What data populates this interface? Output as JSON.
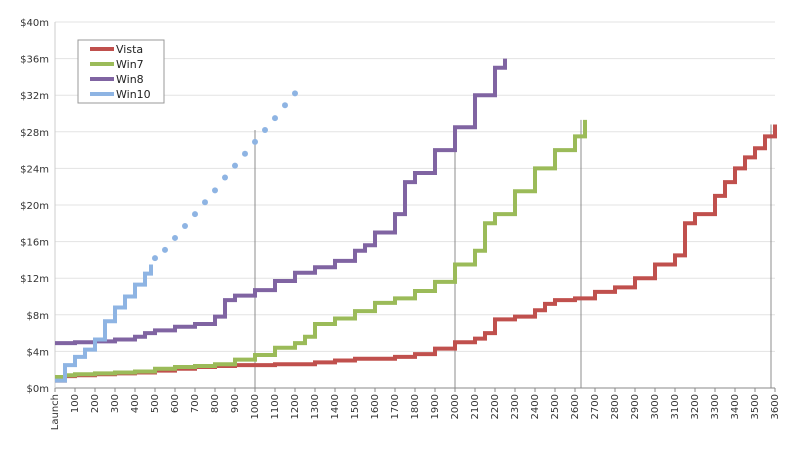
{
  "chart_data": {
    "type": "line",
    "title": "",
    "xlabel": "",
    "ylabel": "",
    "xlim": [
      0,
      3600
    ],
    "ylim": [
      0,
      40
    ],
    "grid": true,
    "legend_position": "top-left",
    "x_tick_labels": [
      "Launch",
      "100",
      "200",
      "300",
      "400",
      "500",
      "600",
      "700",
      "800",
      "900",
      "1000",
      "1100",
      "1200",
      "1300",
      "1400",
      "1500",
      "1600",
      "1700",
      "1800",
      "1900",
      "2000",
      "2100",
      "2200",
      "2300",
      "2400",
      "2500",
      "2600",
      "2700",
      "2800",
      "2900",
      "3000",
      "3100",
      "3200",
      "3300",
      "3400",
      "3500",
      "3600"
    ],
    "y_ticks": [
      0,
      4,
      8,
      12,
      16,
      20,
      24,
      28,
      32,
      36,
      40
    ],
    "y_tick_labels": [
      "$0m",
      "$4m",
      "$8m",
      "$12m",
      "$16m",
      "$20m",
      "$24m",
      "$28m",
      "$32m",
      "$36m",
      "$40m"
    ],
    "reference_lines_x": [
      1000,
      2000,
      2630,
      3580
    ],
    "series": [
      {
        "name": "Vista",
        "color": "#c0504d",
        "style": "solid",
        "x": [
          0,
          50,
          100,
          200,
          300,
          400,
          500,
          600,
          700,
          800,
          900,
          1000,
          1100,
          1200,
          1250,
          1300,
          1400,
          1500,
          1600,
          1700,
          1800,
          1900,
          2000,
          2100,
          2150,
          2200,
          2300,
          2400,
          2450,
          2500,
          2600,
          2700,
          2800,
          2900,
          3000,
          3100,
          3150,
          3200,
          3300,
          3350,
          3400,
          3450,
          3500,
          3550,
          3600
        ],
        "y": [
          0.8,
          1.3,
          1.4,
          1.5,
          1.6,
          1.7,
          1.9,
          2.1,
          2.3,
          2.4,
          2.5,
          2.5,
          2.6,
          2.6,
          2.6,
          2.8,
          3.0,
          3.2,
          3.2,
          3.4,
          3.7,
          4.3,
          5.0,
          5.4,
          6.0,
          7.5,
          7.8,
          8.5,
          9.2,
          9.6,
          9.8,
          10.5,
          11.0,
          12.0,
          13.5,
          14.5,
          18.0,
          19.0,
          21.0,
          22.5,
          24.0,
          25.2,
          26.2,
          27.5,
          28.8
        ]
      },
      {
        "name": "Win7",
        "color": "#9bbb59",
        "style": "solid",
        "x": [
          0,
          50,
          100,
          200,
          300,
          400,
          500,
          600,
          700,
          800,
          900,
          1000,
          1100,
          1200,
          1250,
          1300,
          1400,
          1500,
          1600,
          1700,
          1800,
          1900,
          2000,
          2100,
          2150,
          2200,
          2300,
          2400,
          2500,
          2600,
          2650
        ],
        "y": [
          1.2,
          1.4,
          1.5,
          1.6,
          1.7,
          1.8,
          2.1,
          2.3,
          2.4,
          2.6,
          3.1,
          3.6,
          4.4,
          4.9,
          5.6,
          7.0,
          7.6,
          8.4,
          9.3,
          9.8,
          10.6,
          11.6,
          13.5,
          15.0,
          18.0,
          19.0,
          21.5,
          24.0,
          26.0,
          27.5,
          29.3
        ]
      },
      {
        "name": "Win8",
        "color": "#8064a2",
        "style": "solid",
        "x": [
          0,
          100,
          200,
          300,
          400,
          450,
          500,
          600,
          700,
          800,
          850,
          900,
          1000,
          1100,
          1200,
          1300,
          1400,
          1500,
          1550,
          1600,
          1700,
          1750,
          1800,
          1900,
          2000,
          2100,
          2200,
          2250
        ],
        "y": [
          4.9,
          5.0,
          5.1,
          5.3,
          5.6,
          6.0,
          6.3,
          6.7,
          7.0,
          7.8,
          9.6,
          10.1,
          10.7,
          11.7,
          12.6,
          13.2,
          13.9,
          15.0,
          15.6,
          17.0,
          19.0,
          22.5,
          23.5,
          26.0,
          28.5,
          32.0,
          35.0,
          36.0
        ]
      },
      {
        "name": "Win10",
        "color": "#8eb4e3",
        "style": "dotted",
        "x": [
          0,
          50,
          100,
          150,
          200,
          250,
          300,
          350,
          400,
          450,
          480,
          500,
          550,
          600,
          650,
          700,
          750,
          800,
          850,
          900,
          950,
          1000,
          1050,
          1100,
          1150,
          1200
        ],
        "y": [
          0.8,
          2.5,
          3.4,
          4.2,
          5.3,
          7.3,
          8.8,
          10.0,
          11.3,
          12.5,
          13.5,
          14.2,
          15.1,
          16.4,
          17.7,
          19.0,
          20.3,
          21.6,
          23.0,
          24.3,
          25.6,
          26.9,
          28.2,
          29.5,
          30.9,
          32.2
        ]
      }
    ]
  }
}
